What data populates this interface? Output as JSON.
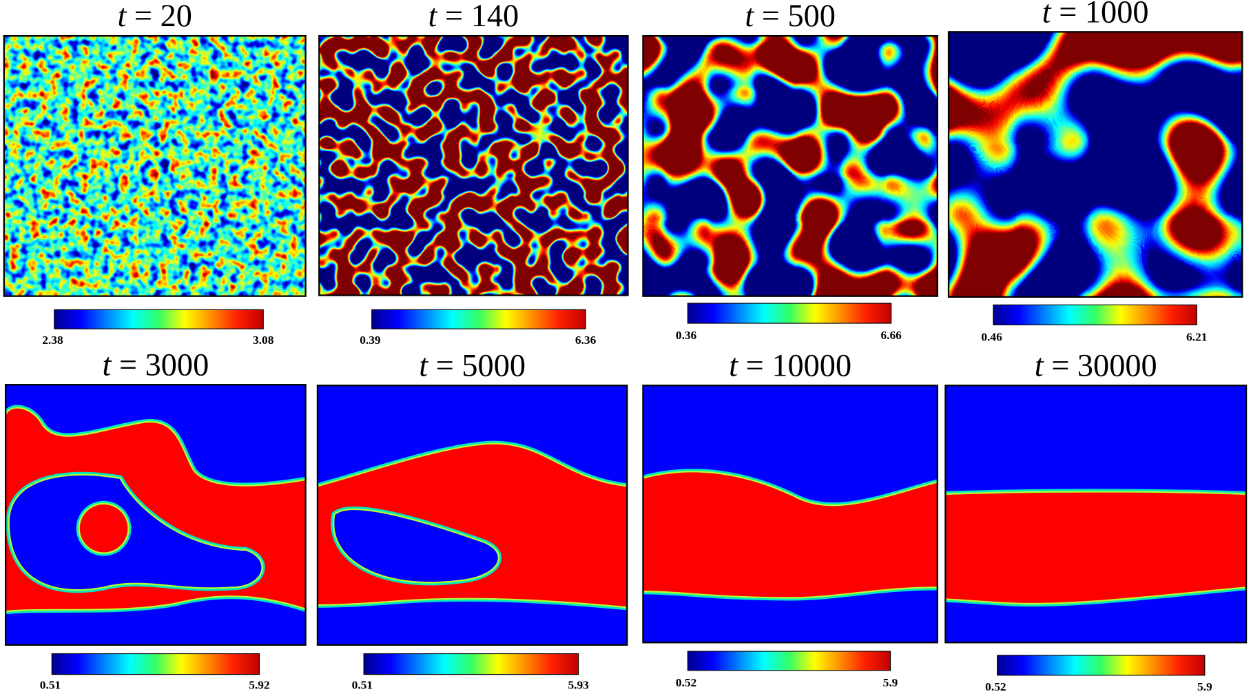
{
  "panels": [
    {
      "title": "t = 20",
      "colorbar": {
        "min": 2.38,
        "max": 3.08
      }
    },
    {
      "title": "t = 140",
      "colorbar": {
        "min": 0.39,
        "max": 6.36
      }
    },
    {
      "title": "t = 500",
      "colorbar": {
        "min": 0.36,
        "max": 6.66
      }
    },
    {
      "title": "t = 1000",
      "colorbar": {
        "min": 0.46,
        "max": 6.21
      }
    },
    {
      "title": "t = 3000",
      "colorbar": {
        "min": 0.51,
        "max": 5.92
      }
    },
    {
      "title": "t = 5000",
      "colorbar": {
        "min": 0.51,
        "max": 5.93
      }
    },
    {
      "title": "t = 10000",
      "colorbar": {
        "min": 0.52,
        "max": 5.9
      }
    },
    {
      "title": "t = 30000",
      "colorbar": {
        "min": 0.52,
        "max": 5.9
      }
    }
  ]
}
